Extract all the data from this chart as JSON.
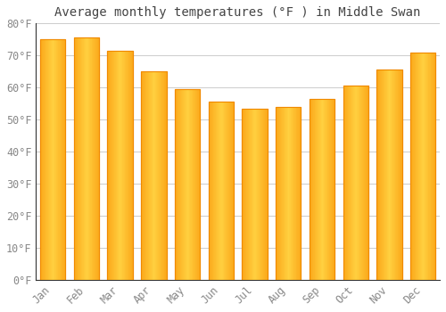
{
  "title": "Average monthly temperatures (°F ) in Middle Swan",
  "months": [
    "Jan",
    "Feb",
    "Mar",
    "Apr",
    "May",
    "Jun",
    "Jul",
    "Aug",
    "Sep",
    "Oct",
    "Nov",
    "Dec"
  ],
  "values": [
    75,
    75.5,
    71.5,
    65,
    59.5,
    55.5,
    53.5,
    54,
    56.5,
    60.5,
    65.5,
    71
  ],
  "bar_color_main": "#FBA81A",
  "bar_color_light": "#FFD040",
  "bar_color_dark": "#F08A00",
  "ylim": [
    0,
    80
  ],
  "yticks": [
    0,
    10,
    20,
    30,
    40,
    50,
    60,
    70,
    80
  ],
  "ytick_labels": [
    "0°F",
    "10°F",
    "20°F",
    "30°F",
    "40°F",
    "50°F",
    "60°F",
    "70°F",
    "80°F"
  ],
  "background_color": "#FFFFFF",
  "grid_color": "#CCCCCC",
  "title_fontsize": 10,
  "tick_fontsize": 8.5,
  "tick_color": "#888888",
  "title_color": "#444444",
  "bar_width": 0.75
}
